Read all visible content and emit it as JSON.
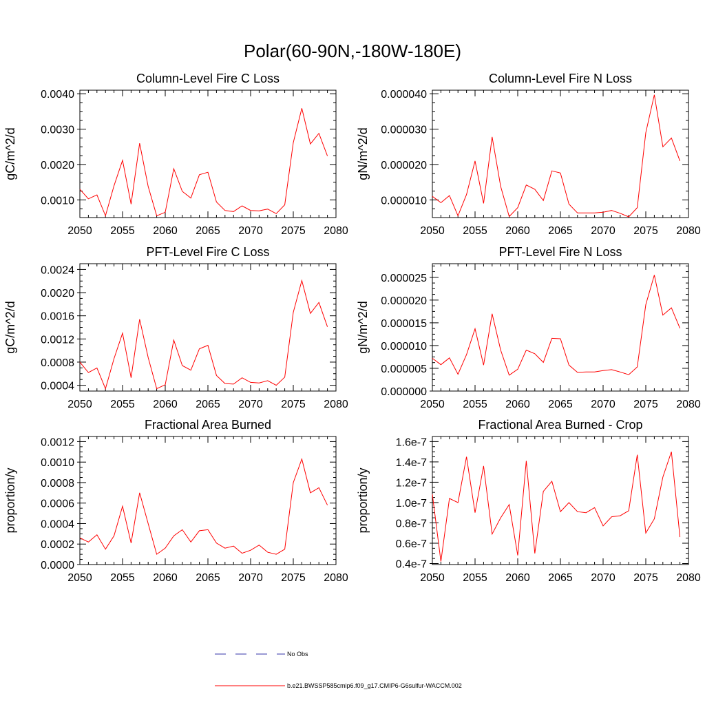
{
  "figure": {
    "title": "Polar(60-90N,-180W-180E)",
    "legend": [
      {
        "label": "No Obs",
        "color": "#3333aa",
        "dash": true
      },
      {
        "label": "b.e21.BWSSP585cmip6.f09_g17.CMIP6-G6sulfur-WACCM.002",
        "color": "#ff0000",
        "dash": false
      }
    ]
  },
  "chart_data": [
    {
      "type": "line",
      "title": "Column-Level Fire C Loss",
      "ylabel": "gC/m^2/d",
      "xlim": [
        2050,
        2080
      ],
      "ylim": [
        0.0005,
        0.0041
      ],
      "xticks": [
        2050,
        2055,
        2060,
        2065,
        2070,
        2075,
        2080
      ],
      "yticks": [
        0.001,
        0.002,
        0.003,
        0.004
      ],
      "ytick_labels": [
        "0.0010",
        "0.0020",
        "0.0030",
        "0.0040"
      ],
      "x": [
        2050,
        2051,
        2052,
        2053,
        2054,
        2055,
        2056,
        2057,
        2058,
        2059,
        2060,
        2061,
        2062,
        2063,
        2064,
        2065,
        2066,
        2067,
        2068,
        2069,
        2070,
        2071,
        2072,
        2073,
        2074,
        2075,
        2076,
        2077,
        2078,
        2079
      ],
      "series": [
        {
          "values": [
            0.0013,
            0.00103,
            0.00114,
            0.00055,
            0.0014,
            0.00212,
            0.00088,
            0.0026,
            0.00138,
            0.00055,
            0.00065,
            0.00188,
            0.00124,
            0.00105,
            0.00171,
            0.00178,
            0.00094,
            0.0007,
            0.00067,
            0.00083,
            0.0007,
            0.00069,
            0.00074,
            0.00061,
            0.00086,
            0.00262,
            0.00359,
            0.00258,
            0.00288,
            0.00224
          ]
        }
      ]
    },
    {
      "type": "line",
      "title": "Column-Level Fire N Loss",
      "ylabel": "gN/m^2/d",
      "xlim": [
        2050,
        2080
      ],
      "ylim": [
        5e-06,
        4.1e-05
      ],
      "xticks": [
        2050,
        2055,
        2060,
        2065,
        2070,
        2075,
        2080
      ],
      "yticks": [
        1e-05,
        2e-05,
        3e-05,
        4e-05
      ],
      "ytick_labels": [
        "0.000010",
        "0.000020",
        "0.000030",
        "0.000040"
      ],
      "x": [
        2050,
        2051,
        2052,
        2053,
        2054,
        2055,
        2056,
        2057,
        2058,
        2059,
        2060,
        2061,
        2062,
        2063,
        2064,
        2065,
        2066,
        2067,
        2068,
        2069,
        2070,
        2071,
        2072,
        2073,
        2074,
        2075,
        2076,
        2077,
        2078,
        2079
      ],
      "series": [
        {
          "values": [
            1.1e-05,
            9.2e-06,
            1.12e-05,
            5.5e-06,
            1.15e-05,
            2.1e-05,
            9e-06,
            2.78e-05,
            1.38e-05,
            5.3e-06,
            7.8e-06,
            1.42e-05,
            1.3e-05,
            9.8e-06,
            1.82e-05,
            1.76e-05,
            8.8e-06,
            6.3e-06,
            6.3e-06,
            6.3e-06,
            6.5e-06,
            7e-06,
            6.2e-06,
            5.2e-06,
            7.8e-06,
            2.9e-05,
            3.97e-05,
            2.5e-05,
            2.75e-05,
            2.1e-05
          ]
        }
      ]
    },
    {
      "type": "line",
      "title": "PFT-Level Fire C Loss",
      "ylabel": "gC/m^2/d",
      "xlim": [
        2050,
        2080
      ],
      "ylim": [
        0.0003,
        0.0025
      ],
      "xticks": [
        2050,
        2055,
        2060,
        2065,
        2070,
        2075,
        2080
      ],
      "yticks": [
        0.0004,
        0.0008,
        0.0012,
        0.0016,
        0.002,
        0.0024
      ],
      "ytick_labels": [
        "0.0004",
        "0.0008",
        "0.0012",
        "0.0016",
        "0.0020",
        "0.0024"
      ],
      "x": [
        2050,
        2051,
        2052,
        2053,
        2054,
        2055,
        2056,
        2057,
        2058,
        2059,
        2060,
        2061,
        2062,
        2063,
        2064,
        2065,
        2066,
        2067,
        2068,
        2069,
        2070,
        2071,
        2072,
        2073,
        2074,
        2075,
        2076,
        2077,
        2078,
        2079
      ],
      "series": [
        {
          "values": [
            0.0008,
            0.00062,
            0.0007,
            0.00034,
            0.00086,
            0.0013,
            0.00053,
            0.00154,
            0.00088,
            0.00034,
            0.00041,
            0.00118,
            0.00074,
            0.00066,
            0.00103,
            0.00109,
            0.00057,
            0.00043,
            0.00042,
            0.00053,
            0.00045,
            0.00044,
            0.00048,
            0.0004,
            0.00054,
            0.00166,
            0.00221,
            0.00164,
            0.00183,
            0.00141
          ]
        }
      ]
    },
    {
      "type": "line",
      "title": "PFT-Level Fire N Loss",
      "ylabel": "gN/m^2/d",
      "xlim": [
        2050,
        2080
      ],
      "ylim": [
        0.0,
        2.8e-05
      ],
      "xticks": [
        2050,
        2055,
        2060,
        2065,
        2070,
        2075,
        2080
      ],
      "yticks": [
        0.0,
        5e-06,
        1e-05,
        1.5e-05,
        2e-05,
        2.5e-05
      ],
      "ytick_labels": [
        "0.000000",
        "0.000005",
        "0.000010",
        "0.000015",
        "0.000020",
        "0.000025"
      ],
      "x": [
        2050,
        2051,
        2052,
        2053,
        2054,
        2055,
        2056,
        2057,
        2058,
        2059,
        2060,
        2061,
        2062,
        2063,
        2064,
        2065,
        2066,
        2067,
        2068,
        2069,
        2070,
        2071,
        2072,
        2073,
        2074,
        2075,
        2076,
        2077,
        2078,
        2079
      ],
      "series": [
        {
          "values": [
            7.2e-06,
            5.8e-06,
            7.3e-06,
            3.7e-06,
            8e-06,
            1.37e-05,
            5.7e-06,
            1.7e-05,
            9e-06,
            3.5e-06,
            4.8e-06,
            9e-06,
            8.2e-06,
            6.3e-06,
            1.16e-05,
            1.15e-05,
            5.7e-06,
            4.1e-06,
            4.2e-06,
            4.2e-06,
            4.5e-06,
            4.7e-06,
            4.2e-06,
            3.6e-06,
            5.3e-06,
            1.9e-05,
            2.55e-05,
            1.67e-05,
            1.83e-05,
            1.38e-05
          ]
        }
      ]
    },
    {
      "type": "line",
      "title": "Fractional Area Burned",
      "ylabel": "proportion/y",
      "xlim": [
        2050,
        2080
      ],
      "ylim": [
        0.0,
        0.00125
      ],
      "xticks": [
        2050,
        2055,
        2060,
        2065,
        2070,
        2075,
        2080
      ],
      "yticks": [
        0.0,
        0.0002,
        0.0004,
        0.0006,
        0.0008,
        0.001,
        0.0012
      ],
      "ytick_labels": [
        "0.0000",
        "0.0002",
        "0.0004",
        "0.0006",
        "0.0008",
        "0.0010",
        "0.0012"
      ],
      "x": [
        2050,
        2051,
        2052,
        2053,
        2054,
        2055,
        2056,
        2057,
        2058,
        2059,
        2060,
        2061,
        2062,
        2063,
        2064,
        2065,
        2066,
        2067,
        2068,
        2069,
        2070,
        2071,
        2072,
        2073,
        2074,
        2075,
        2076,
        2077,
        2078,
        2079
      ],
      "series": [
        {
          "values": [
            0.00026,
            0.00022,
            0.00029,
            0.00015,
            0.00028,
            0.00057,
            0.00021,
            0.0007,
            0.0004,
            0.0001,
            0.00016,
            0.00028,
            0.00034,
            0.00022,
            0.00033,
            0.00034,
            0.00021,
            0.00016,
            0.00018,
            0.00011,
            0.00014,
            0.00019,
            0.00012,
            0.0001,
            0.00015,
            0.0008,
            0.00103,
            0.0007,
            0.00075,
            0.00058
          ]
        }
      ]
    },
    {
      "type": "line",
      "title": "Fractional Area Burned - Crop",
      "ylabel": "proportion/y",
      "xlim": [
        2050,
        2080
      ],
      "ylim": [
        3.9e-08,
        1.65e-07
      ],
      "xticks": [
        2050,
        2055,
        2060,
        2065,
        2070,
        2075,
        2080
      ],
      "yticks": [
        4e-08,
        6e-08,
        8e-08,
        1e-07,
        1.2e-07,
        1.4e-07,
        1.6e-07
      ],
      "ytick_labels": [
        "0.4e-7",
        "0.6e-7",
        "0.8e-7",
        "1.0e-7",
        "1.2e-7",
        "1.4e-7",
        "1.6e-7"
      ],
      "x": [
        2050,
        2051,
        2052,
        2053,
        2054,
        2055,
        2056,
        2057,
        2058,
        2059,
        2060,
        2061,
        2062,
        2063,
        2064,
        2065,
        2066,
        2067,
        2068,
        2069,
        2070,
        2071,
        2072,
        2073,
        2074,
        2075,
        2076,
        2077,
        2078,
        2079
      ],
      "series": [
        {
          "values": [
            1.08e-07,
            4.2e-08,
            1.04e-07,
            1e-07,
            1.45e-07,
            9e-08,
            1.36e-07,
            6.9e-08,
            8.5e-08,
            9.8e-08,
            4.8e-08,
            1.41e-07,
            5e-08,
            1.11e-07,
            1.21e-07,
            9.1e-08,
            1e-07,
            9.1e-08,
            9e-08,
            9.5e-08,
            7.7e-08,
            8.6e-08,
            8.7e-08,
            9.2e-08,
            1.47e-07,
            7e-08,
            8.4e-08,
            1.25e-07,
            1.5e-07,
            6.6e-08
          ]
        }
      ]
    }
  ]
}
